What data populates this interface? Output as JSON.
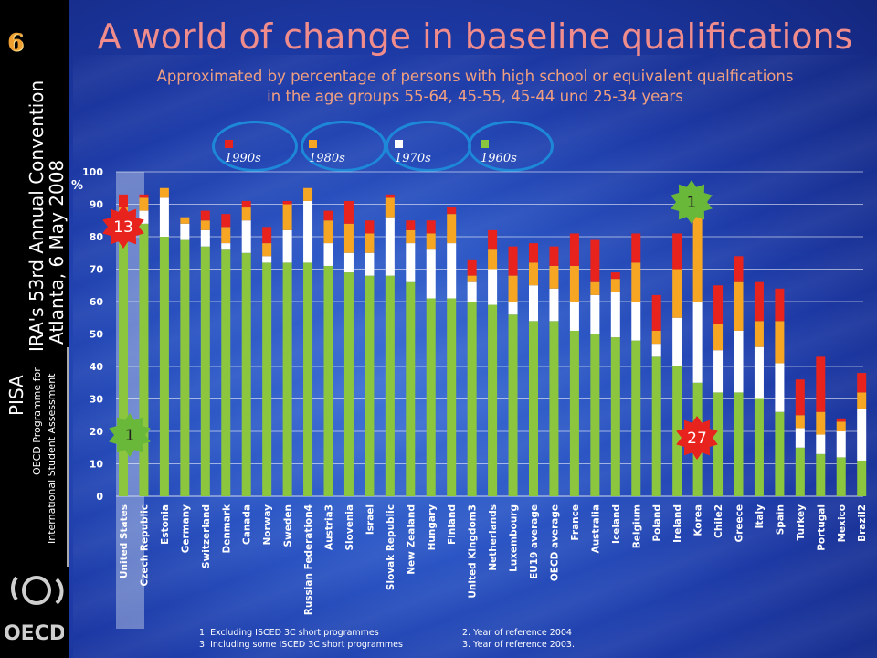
{
  "slide_number": "6",
  "title": "A world of change in baseline qualifications",
  "subtitle_line1": "Approximated by percentage of persons with high school or equivalent qualfications",
  "subtitle_line2": "in the age groups 55-64, 45-55, 45-44 und 25-34 years",
  "sidebar": {
    "event_line1": "IRA's 53rd Annual Convention",
    "event_line2": "Atlanta, 6 May 2008",
    "pisa": "PISA",
    "pisa_sub1": "OECD Programme for",
    "pisa_sub2": "International Student Assessment",
    "logo_text": "OECD"
  },
  "footnotes": {
    "n1": "1. Excluding ISCED 3C short programmes",
    "n2": "2.  Year of reference 2004",
    "n3": "3. Including some ISCED 3C  short programmes",
    "n4": "3.  Year of reference 2003."
  },
  "badges": [
    {
      "label": "13",
      "color": "#e8231e"
    },
    {
      "label": "1",
      "color": "#6ab83a"
    },
    {
      "label": "1",
      "color": "#6ab83a"
    },
    {
      "label": "27",
      "color": "#e8231e"
    }
  ],
  "chart_data": {
    "type": "bar",
    "stacked": true,
    "ylabel": "%",
    "ylim": [
      0,
      100
    ],
    "yticks": [
      0,
      10,
      20,
      30,
      40,
      50,
      60,
      70,
      80,
      90,
      100
    ],
    "legend_position": "top",
    "categories": [
      "United States",
      "Czech Republic",
      "Estonia",
      "Germany",
      "Switzerland",
      "Denmark",
      "Canada",
      "Norway",
      "Sweden",
      "Russian Federation4",
      "Austria3",
      "Slovenia",
      "Israel",
      "Slovak Republic",
      "New Zealand",
      "Hungary",
      "Finland",
      "United Kingdom3",
      "Netherlands",
      "Luxembourg",
      "EU19  average",
      "OECD  average",
      "France",
      "Australia",
      "Iceland",
      "Belgium",
      "Poland",
      "Ireland",
      "Korea",
      "Chile2",
      "Greece",
      "Italy",
      "Spain",
      "Turkey",
      "Portugal",
      "Mexico",
      "Brazil2"
    ],
    "highlighted_category": "United States",
    "series": [
      {
        "name": "1960s",
        "color": "#8cc63f",
        "values": [
          80,
          84,
          80,
          79,
          77,
          76,
          75,
          72,
          72,
          72,
          71,
          69,
          68,
          68,
          66,
          61,
          61,
          60,
          59,
          56,
          54,
          54,
          51,
          50,
          49,
          48,
          43,
          40,
          35,
          32,
          32,
          30,
          26,
          15,
          13,
          12,
          11
        ]
      },
      {
        "name": "1970s",
        "color": "#ffffff",
        "values": [
          5,
          4,
          12,
          5,
          5,
          2,
          10,
          2,
          10,
          19,
          7,
          6,
          7,
          18,
          12,
          15,
          17,
          6,
          11,
          4,
          11,
          10,
          9,
          12,
          14,
          12,
          4,
          15,
          25,
          13,
          19,
          16,
          15,
          6,
          6,
          8,
          16
        ]
      },
      {
        "name": "1980s",
        "color": "#f6a623",
        "values": [
          4,
          4,
          3,
          2,
          3,
          5,
          4,
          4,
          8,
          4,
          7,
          9,
          6,
          6,
          4,
          5,
          9,
          2,
          6,
          8,
          7,
          7,
          11,
          4,
          4,
          12,
          4,
          15,
          28,
          8,
          15,
          8,
          13,
          4,
          7,
          3,
          5
        ]
      },
      {
        "name": "1990s",
        "color": "#e8231e",
        "values": [
          4,
          1,
          0,
          0,
          3,
          4,
          2,
          5,
          1,
          0,
          3,
          7,
          4,
          1,
          3,
          4,
          2,
          5,
          6,
          9,
          6,
          6,
          10,
          13,
          2,
          9,
          11,
          11,
          6,
          12,
          8,
          12,
          10,
          11,
          17,
          1,
          6
        ]
      }
    ]
  }
}
